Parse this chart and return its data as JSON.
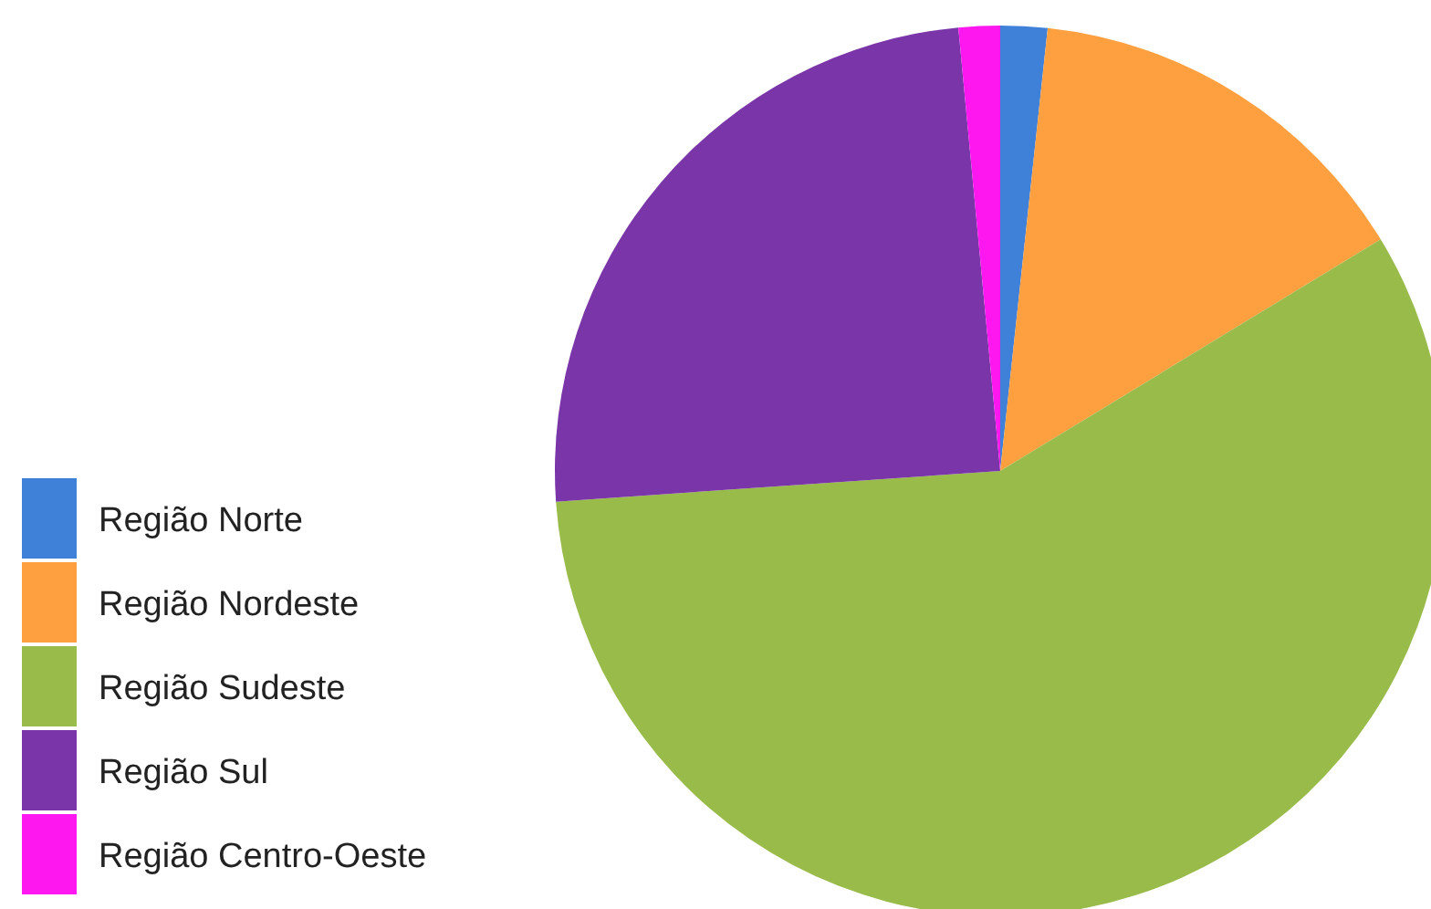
{
  "chart_data": {
    "type": "pie",
    "categories": [
      "Região Norte",
      "Região Nordeste",
      "Região Sudeste",
      "Região Sul",
      "Região Centro-Oeste"
    ],
    "values": [
      1.7,
      14.6,
      57.6,
      24.6,
      1.5
    ],
    "colors": [
      "#3f80d8",
      "#ffa040",
      "#98bb4a",
      "#7a35a8",
      "#ff17f0"
    ],
    "legend": "left"
  }
}
